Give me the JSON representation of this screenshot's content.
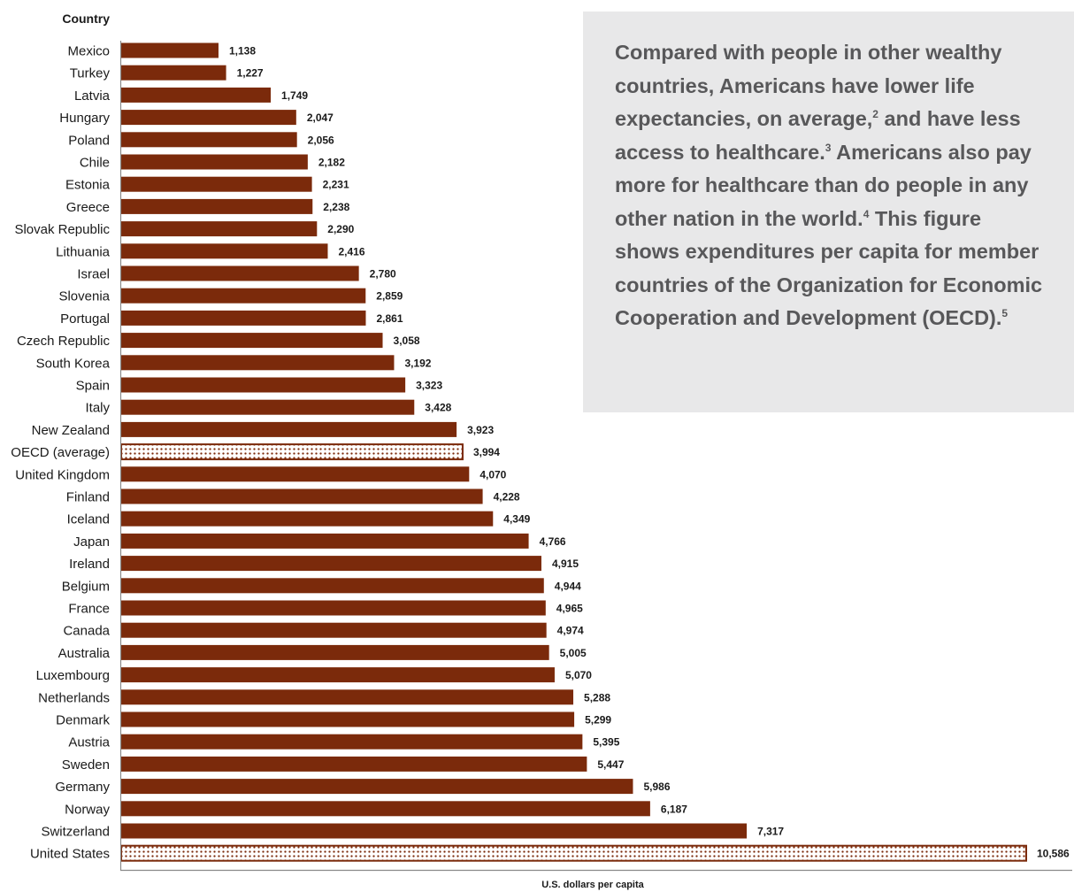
{
  "chart_data": {
    "type": "bar",
    "orientation": "horizontal",
    "ylabel": "Country",
    "xlabel": "U.S. dollars per capita",
    "categories": [
      "Mexico",
      "Turkey",
      "Latvia",
      "Hungary",
      "Poland",
      "Chile",
      "Estonia",
      "Greece",
      "Slovak Republic",
      "Lithuania",
      "Israel",
      "Slovenia",
      "Portugal",
      "Czech Republic",
      "South Korea",
      "Spain",
      "Italy",
      "New Zealand",
      "OECD (average)",
      "United Kingdom",
      "Finland",
      "Iceland",
      "Japan",
      "Ireland",
      "Belgium",
      "France",
      "Canada",
      "Australia",
      "Luxembourg",
      "Netherlands",
      "Denmark",
      "Austria",
      "Sweden",
      "Germany",
      "Norway",
      "Switzerland",
      "United States"
    ],
    "values": [
      1138,
      1227,
      1749,
      2047,
      2056,
      2182,
      2231,
      2238,
      2290,
      2416,
      2780,
      2859,
      2861,
      3058,
      3192,
      3323,
      3428,
      3923,
      3994,
      4070,
      4228,
      4349,
      4766,
      4915,
      4944,
      4965,
      4974,
      5005,
      5070,
      5288,
      5299,
      5395,
      5447,
      5986,
      6187,
      7317,
      10586
    ],
    "value_labels": [
      "1,138",
      "1,227",
      "1,749",
      "2,047",
      "2,056",
      "2,182",
      "2,231",
      "2,238",
      "2,290",
      "2,416",
      "2,780",
      "2,859",
      "2,861",
      "3,058",
      "3,192",
      "3,323",
      "3,428",
      "3,923",
      "3,994",
      "4,070",
      "4,228",
      "4,349",
      "4,766",
      "4,915",
      "4,944",
      "4,965",
      "4,974",
      "5,005",
      "5,070",
      "5,288",
      "5,299",
      "5,395",
      "5,447",
      "5,986",
      "6,187",
      "7,317",
      "10,586"
    ],
    "highlighted": [
      "OECD (average)",
      "United States"
    ],
    "xlim": [
      0,
      10586
    ],
    "grid": false,
    "legend": false,
    "bar_color": "#7b2a0b",
    "highlight_fill": "#ffffff"
  },
  "callout": {
    "background": "#e8e8e9",
    "text_color": "#58585a",
    "parts": [
      {
        "text": "Compared with people in other wealthy countries, Americans have lower life expectancies, on average,"
      },
      {
        "sup": "2"
      },
      {
        "text": " and have less access to healthcare."
      },
      {
        "sup": "3"
      },
      {
        "text": " Americans also pay more for healthcare than do people in any other nation in the world."
      },
      {
        "sup": "4"
      },
      {
        "text": " This figure shows expenditures per capita for member countries of the Organization for Economic Cooperation and Development (OECD)."
      },
      {
        "sup": "5"
      }
    ]
  }
}
